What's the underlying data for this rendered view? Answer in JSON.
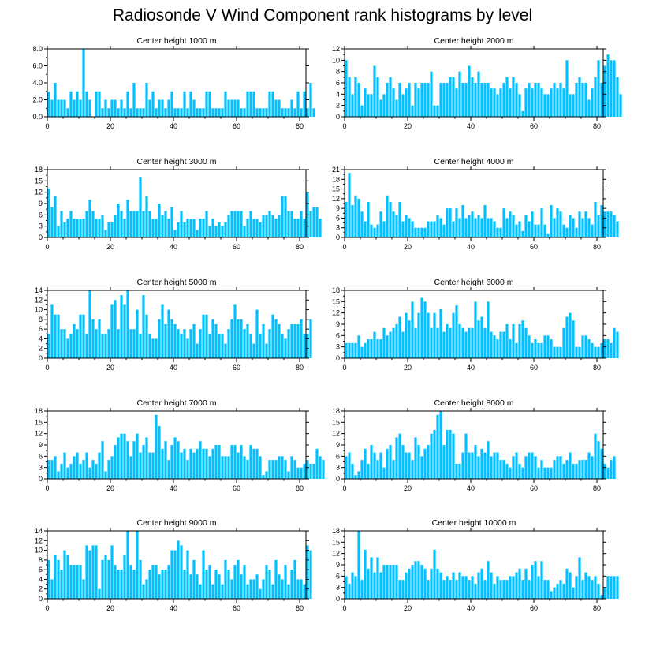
{
  "title": "Radiosonde V Wind Component rank histograms by level",
  "colors": {
    "bar": "#00c0ff",
    "bar_edge": "#00a8e6",
    "axis": "#000000"
  },
  "chart_data": [
    {
      "type": "bar",
      "title": "Center height 1000 m",
      "ylim": [
        0,
        8
      ],
      "yticks": [
        "0.0",
        "2.0",
        "4.0",
        "6.0",
        "8.0"
      ],
      "ytick_values": [
        0,
        2,
        4,
        6,
        8
      ],
      "xticks": [
        "0",
        "20",
        "40",
        "60",
        "80"
      ],
      "xtick_values": [
        0,
        20,
        40,
        60,
        80
      ],
      "values": [
        3,
        2,
        4,
        2,
        2,
        2,
        1,
        3,
        2,
        3,
        2,
        8,
        3,
        2,
        0,
        3,
        3,
        1,
        2,
        1,
        2,
        2,
        1,
        2,
        1,
        3,
        1,
        4,
        1,
        1,
        1,
        4,
        2,
        3,
        1,
        2,
        2,
        1,
        2,
        3,
        1,
        1,
        1,
        3,
        1,
        3,
        2,
        1,
        1,
        1,
        3,
        3,
        1,
        1,
        1,
        1,
        3,
        2,
        2,
        2,
        2,
        1,
        1,
        3,
        3,
        3,
        1,
        1,
        1,
        1,
        3,
        3,
        2,
        2,
        1,
        1,
        1,
        2,
        1,
        3,
        1,
        3,
        1,
        4,
        1
      ]
    },
    {
      "type": "bar",
      "title": "Center height 2000 m",
      "ylim": [
        0,
        12
      ],
      "yticks": [
        "0",
        "2",
        "4",
        "6",
        "8",
        "10",
        "12"
      ],
      "ytick_values": [
        0,
        2,
        4,
        6,
        8,
        10,
        12
      ],
      "xticks": [
        "0",
        "20",
        "40",
        "60",
        "80"
      ],
      "xtick_values": [
        0,
        20,
        40,
        60,
        80
      ],
      "values": [
        10,
        7,
        4,
        7,
        6,
        2,
        5,
        4,
        4,
        9,
        7,
        3,
        4,
        6,
        7,
        5,
        3,
        6,
        4,
        5,
        6,
        2,
        6,
        5,
        6,
        6,
        6,
        8,
        2,
        2,
        6,
        6,
        6,
        7,
        7,
        5,
        8,
        6,
        6,
        9,
        7,
        6,
        8,
        6,
        6,
        6,
        5,
        5,
        4,
        5,
        6,
        7,
        5,
        7,
        6,
        4,
        1,
        5,
        6,
        5,
        6,
        6,
        5,
        4,
        4,
        5,
        6,
        5,
        6,
        5,
        10,
        4,
        4,
        6,
        7,
        6,
        6,
        3,
        5,
        7,
        10,
        6,
        9,
        11,
        10,
        10,
        7,
        4
      ]
    },
    {
      "type": "bar",
      "title": "Center height 3000 m",
      "ylim": [
        0,
        18
      ],
      "yticks": [
        "0",
        "3",
        "6",
        "9",
        "12",
        "15",
        "18"
      ],
      "ytick_values": [
        0,
        3,
        6,
        9,
        12,
        15,
        18
      ],
      "xticks": [
        "0",
        "20",
        "40",
        "60",
        "80"
      ],
      "xtick_values": [
        0,
        20,
        40,
        60,
        80
      ],
      "values": [
        13,
        8,
        11,
        3,
        7,
        4,
        5,
        7,
        5,
        5,
        5,
        5,
        7,
        10,
        7,
        5,
        5,
        6,
        2,
        4,
        4,
        6,
        9,
        7,
        5,
        10,
        7,
        7,
        7,
        16,
        7,
        11,
        7,
        5,
        5,
        9,
        6,
        7,
        5,
        8,
        2,
        4,
        7,
        4,
        5,
        5,
        5,
        2,
        5,
        5,
        7,
        3,
        5,
        3,
        4,
        3,
        4,
        6,
        7,
        7,
        7,
        7,
        3,
        5,
        7,
        5,
        5,
        4,
        6,
        6,
        7,
        6,
        5,
        6,
        11,
        11,
        7,
        7,
        5,
        5,
        7,
        5,
        12,
        7,
        8,
        8,
        5
      ]
    },
    {
      "type": "bar",
      "title": "Center height 4000 m",
      "ylim": [
        0,
        21
      ],
      "yticks": [
        "0",
        "3",
        "6",
        "9",
        "12",
        "15",
        "18",
        "21"
      ],
      "ytick_values": [
        0,
        3,
        6,
        9,
        12,
        15,
        18,
        21
      ],
      "xticks": [
        "0",
        "20",
        "40",
        "60",
        "80"
      ],
      "xtick_values": [
        0,
        20,
        40,
        60,
        80
      ],
      "values": [
        11,
        20,
        10,
        13,
        12,
        8,
        5,
        11,
        4,
        3,
        4,
        8,
        5,
        13,
        11,
        8,
        7,
        11,
        5,
        7,
        6,
        5,
        3,
        3,
        3,
        3,
        5,
        5,
        5,
        7,
        6,
        4,
        9,
        9,
        5,
        9,
        6,
        10,
        6,
        7,
        8,
        6,
        7,
        6,
        10,
        6,
        6,
        5,
        3,
        3,
        9,
        6,
        8,
        7,
        4,
        5,
        2,
        7,
        5,
        8,
        4,
        4,
        9,
        4,
        1,
        10,
        6,
        9,
        8,
        4,
        3,
        7,
        6,
        3,
        8,
        6,
        8,
        6,
        4,
        11,
        7,
        10,
        8,
        8,
        8,
        7,
        5
      ]
    },
    {
      "type": "bar",
      "title": "Center height 5000 m",
      "ylim": [
        0,
        14
      ],
      "yticks": [
        "0",
        "2",
        "4",
        "6",
        "8",
        "10",
        "12",
        "14"
      ],
      "ytick_values": [
        0,
        2,
        4,
        6,
        8,
        10,
        12,
        14
      ],
      "xticks": [
        "0",
        "20",
        "40",
        "60",
        "80"
      ],
      "xtick_values": [
        0,
        20,
        40,
        60,
        80
      ],
      "values": [
        5,
        11,
        9,
        9,
        6,
        6,
        4,
        5,
        7,
        6,
        9,
        9,
        5,
        14,
        8,
        6,
        8,
        5,
        5,
        6,
        11,
        12,
        6,
        13,
        11,
        14,
        6,
        6,
        10,
        5,
        13,
        9,
        5,
        4,
        4,
        8,
        11,
        7,
        10,
        8,
        7,
        6,
        5,
        6,
        4,
        6,
        7,
        3,
        6,
        9,
        9,
        5,
        8,
        7,
        5,
        5,
        3,
        6,
        8,
        11,
        8,
        8,
        6,
        7,
        5,
        3,
        10,
        5,
        7,
        3,
        6,
        9,
        8,
        7,
        5,
        4,
        6,
        7,
        7,
        7,
        8,
        5,
        5,
        8
      ]
    },
    {
      "type": "bar",
      "title": "Center height 6000 m",
      "ylim": [
        0,
        18
      ],
      "yticks": [
        "0",
        "3",
        "6",
        "9",
        "12",
        "15",
        "18"
      ],
      "ytick_values": [
        0,
        3,
        6,
        9,
        12,
        15,
        18
      ],
      "xticks": [
        "0",
        "20",
        "40",
        "60",
        "80"
      ],
      "xtick_values": [
        0,
        20,
        40,
        60,
        80
      ],
      "values": [
        4,
        4,
        4,
        4,
        6,
        3,
        4,
        5,
        5,
        7,
        5,
        5,
        8,
        6,
        7,
        8,
        9,
        11,
        7,
        12,
        10,
        15,
        8,
        12,
        16,
        15,
        12,
        8,
        12,
        8,
        13,
        7,
        9,
        8,
        12,
        14,
        9,
        8,
        7,
        8,
        8,
        15,
        10,
        11,
        8,
        15,
        7,
        6,
        5,
        7,
        7,
        9,
        5,
        9,
        4,
        9,
        10,
        8,
        6,
        4,
        5,
        4,
        4,
        6,
        6,
        5,
        3,
        3,
        3,
        8,
        11,
        12,
        10,
        3,
        3,
        6,
        6,
        5,
        4,
        3,
        3,
        4,
        5,
        5,
        4,
        8,
        7
      ]
    },
    {
      "type": "bar",
      "title": "Center height 7000 m",
      "ylim": [
        0,
        18
      ],
      "yticks": [
        "0",
        "3",
        "6",
        "9",
        "12",
        "15",
        "18"
      ],
      "ytick_values": [
        0,
        3,
        6,
        9,
        12,
        15,
        18
      ],
      "xticks": [
        "0",
        "20",
        "40",
        "60",
        "80"
      ],
      "xtick_values": [
        0,
        20,
        40,
        60,
        80
      ],
      "values": [
        5,
        5,
        6,
        2,
        4,
        7,
        3,
        4,
        6,
        7,
        4,
        5,
        7,
        3,
        5,
        4,
        7,
        10,
        2,
        5,
        6,
        9,
        11,
        12,
        12,
        10,
        6,
        10,
        12,
        7,
        9,
        11,
        7,
        7,
        17,
        14,
        8,
        10,
        5,
        9,
        11,
        10,
        7,
        8,
        5,
        8,
        7,
        8,
        10,
        8,
        8,
        6,
        8,
        9,
        9,
        6,
        6,
        6,
        9,
        9,
        7,
        9,
        6,
        5,
        9,
        8,
        8,
        6,
        1,
        2,
        5,
        5,
        5,
        6,
        6,
        5,
        2,
        6,
        5,
        3,
        3,
        4,
        5,
        4,
        4,
        8,
        6,
        5
      ]
    },
    {
      "type": "bar",
      "title": "Center height 8000 m",
      "ylim": [
        0,
        18
      ],
      "yticks": [
        "0",
        "3",
        "6",
        "9",
        "12",
        "15",
        "18"
      ],
      "ytick_values": [
        0,
        3,
        6,
        9,
        12,
        15,
        18
      ],
      "xticks": [
        "0",
        "20",
        "40",
        "60",
        "80"
      ],
      "xtick_values": [
        0,
        20,
        40,
        60,
        80
      ],
      "values": [
        6,
        7,
        4,
        1,
        2,
        5,
        8,
        4,
        9,
        7,
        5,
        7,
        3,
        8,
        9,
        5,
        11,
        12,
        9,
        7,
        7,
        5,
        11,
        9,
        6,
        8,
        9,
        12,
        13,
        17,
        18,
        9,
        13,
        13,
        12,
        4,
        4,
        7,
        12,
        7,
        7,
        9,
        6,
        8,
        7,
        10,
        6,
        7,
        7,
        5,
        5,
        4,
        3,
        6,
        7,
        4,
        3,
        6,
        7,
        7,
        6,
        3,
        5,
        3,
        3,
        3,
        5,
        6,
        6,
        4,
        5,
        7,
        4,
        4,
        5,
        5,
        5,
        7,
        6,
        12,
        10,
        8,
        4,
        3,
        5,
        6
      ]
    },
    {
      "type": "bar",
      "title": "Center height 9000 m",
      "ylim": [
        0,
        14
      ],
      "yticks": [
        "0",
        "2",
        "4",
        "6",
        "8",
        "10",
        "12",
        "14"
      ],
      "ytick_values": [
        0,
        2,
        4,
        6,
        8,
        10,
        12,
        14
      ],
      "xticks": [
        "0",
        "20",
        "40",
        "60",
        "80"
      ],
      "xtick_values": [
        0,
        20,
        40,
        60,
        80
      ],
      "values": [
        8,
        4,
        9,
        8,
        6,
        10,
        9,
        7,
        7,
        7,
        7,
        4,
        11,
        10,
        11,
        11,
        2,
        8,
        9,
        8,
        11,
        7,
        6,
        6,
        9,
        14,
        7,
        6,
        14,
        8,
        3,
        4,
        6,
        7,
        7,
        5,
        6,
        6,
        7,
        10,
        10,
        12,
        11,
        6,
        10,
        5,
        8,
        5,
        3,
        10,
        6,
        7,
        3,
        6,
        5,
        3,
        8,
        6,
        4,
        7,
        8,
        5,
        7,
        3,
        4,
        4,
        5,
        2,
        4,
        7,
        6,
        3,
        8,
        5,
        4,
        7,
        3,
        6,
        8,
        4,
        4,
        3,
        11,
        10
      ]
    },
    {
      "type": "bar",
      "title": "Center height 10000 m",
      "ylim": [
        0,
        18
      ],
      "yticks": [
        "0",
        "3",
        "6",
        "9",
        "12",
        "15",
        "18"
      ],
      "ytick_values": [
        0,
        3,
        6,
        9,
        12,
        15,
        18
      ],
      "xticks": [
        "0",
        "20",
        "40",
        "60",
        "80"
      ],
      "xtick_values": [
        0,
        20,
        40,
        60,
        80
      ],
      "values": [
        6,
        4,
        7,
        6,
        18,
        5,
        13,
        8,
        11,
        7,
        11,
        7,
        9,
        9,
        9,
        9,
        9,
        5,
        5,
        7,
        8,
        9,
        10,
        10,
        9,
        8,
        5,
        8,
        13,
        8,
        7,
        5,
        6,
        5,
        7,
        5,
        7,
        6,
        6,
        5,
        6,
        4,
        7,
        8,
        5,
        10,
        7,
        4,
        6,
        5,
        5,
        5,
        6,
        6,
        7,
        8,
        5,
        8,
        5,
        9,
        10,
        6,
        10,
        5,
        5,
        2,
        3,
        4,
        5,
        4,
        8,
        7,
        3,
        6,
        11,
        5,
        7,
        6,
        5,
        6,
        4,
        1,
        3,
        6,
        6,
        6,
        6
      ]
    }
  ]
}
